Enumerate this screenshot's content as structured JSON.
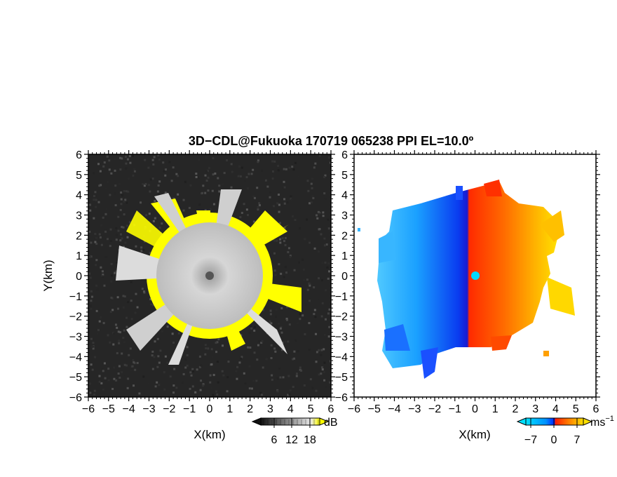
{
  "figure": {
    "title": "3D−CDL@Fukuoka 170719 065238 PPI EL=10.0º"
  },
  "panels": [
    {
      "id": "snr",
      "xlabel": "X(km)",
      "ylabel": "Y(km)",
      "colorbar": {
        "unit": "dB",
        "ticks": [
          "6",
          "12",
          "18"
        ],
        "colors": [
          "#111111",
          "#444444",
          "#777777",
          "#aaaaaa",
          "#dddddd",
          "#ffff00"
        ]
      }
    },
    {
      "id": "velocity",
      "xlabel": "X(km)",
      "ylabel": "",
      "colorbar": {
        "unit": "ms",
        "unit_sup": "−1",
        "ticks": [
          "−7",
          "0",
          "7"
        ],
        "colors": [
          "#00c8ff",
          "#0078ff",
          "#0028ff",
          "#ff2000",
          "#ff7000",
          "#ffd000"
        ]
      }
    }
  ],
  "chart_data": [
    {
      "type": "heatmap",
      "name": "left-ppi",
      "xlabel": "X(km)",
      "ylabel": "Y(km)",
      "xlim": [
        -6,
        6
      ],
      "ylim": [
        -6,
        6
      ],
      "xticks": [
        -6,
        -5,
        -4,
        -3,
        -2,
        -1,
        0,
        1,
        2,
        3,
        4,
        5,
        6
      ],
      "yticks": [
        -6,
        -5,
        -4,
        -3,
        -2,
        -1,
        0,
        1,
        2,
        3,
        4,
        5,
        6
      ],
      "colorbar_unit": "dB",
      "colorbar_ticks": [
        6,
        12,
        18
      ],
      "features": {
        "inner_disk_radius_km": 2.6,
        "saturated_ring_radius_km": [
          2.6,
          3.1
        ],
        "background": "dark noise",
        "center_blank_radius_km": 0.2
      }
    },
    {
      "type": "heatmap",
      "name": "right-ppi",
      "xlabel": "X(km)",
      "xlim": [
        -6,
        6
      ],
      "ylim": [
        -6,
        6
      ],
      "xticks": [
        -6,
        -5,
        -4,
        -3,
        -2,
        -1,
        0,
        1,
        2,
        3,
        4,
        5,
        6
      ],
      "yticks": [
        -6,
        -5,
        -4,
        -3,
        -2,
        -1,
        0,
        1,
        2,
        3,
        4,
        5,
        6
      ],
      "colorbar_unit": "ms−1",
      "colorbar_ticks": [
        -7,
        0,
        7
      ],
      "features": {
        "west_half": "negative (blue)",
        "east_half": "positive (red to yellow)",
        "data_radius_km": 4.5
      }
    }
  ]
}
